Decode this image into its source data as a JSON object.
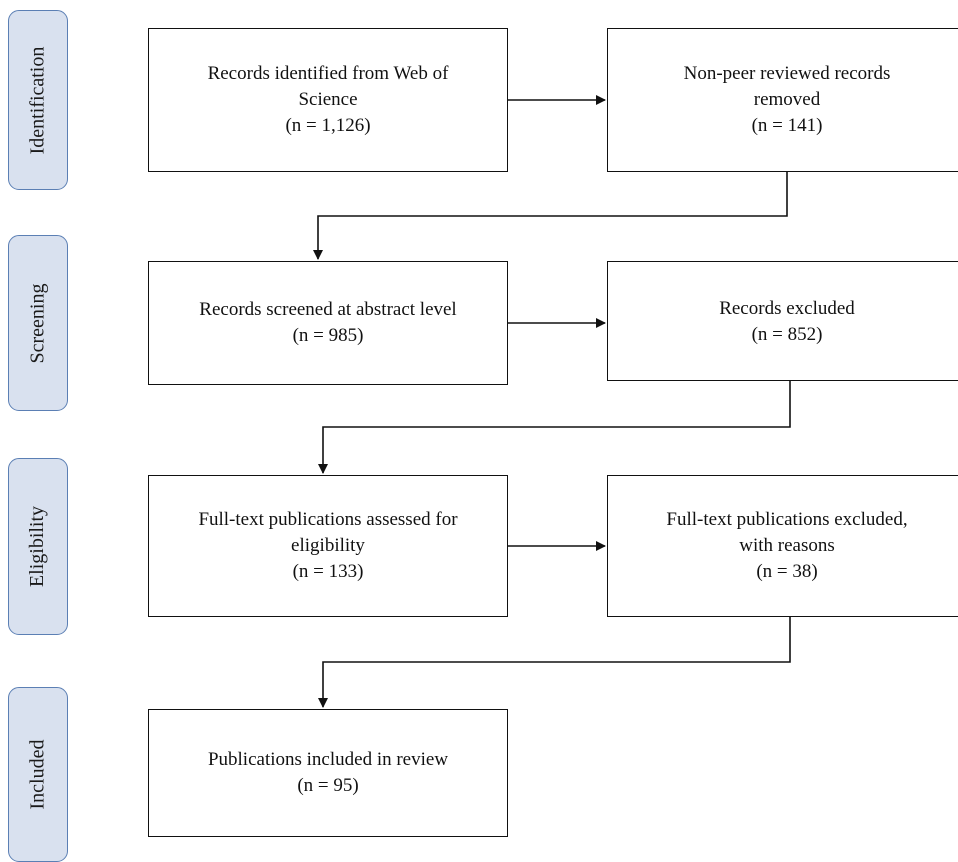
{
  "stages": [
    {
      "label": "Identification"
    },
    {
      "label": "Screening"
    },
    {
      "label": "Eligibility"
    },
    {
      "label": "Included"
    }
  ],
  "boxes": {
    "identified": {
      "lines": [
        "Records identified from Web of",
        "Science"
      ],
      "count": "(n = 1,126)"
    },
    "non_peer_removed": {
      "lines": [
        "Non-peer reviewed records",
        "removed"
      ],
      "count": "(n = 141)"
    },
    "screened": {
      "lines": [
        "Records screened at abstract level"
      ],
      "count": "(n = 985)"
    },
    "excluded": {
      "lines": [
        "Records excluded"
      ],
      "count": "(n = 852)"
    },
    "fulltext_assessed": {
      "lines": [
        "Full-text publications assessed for",
        "eligibility"
      ],
      "count": "(n = 133)"
    },
    "fulltext_excluded": {
      "lines": [
        "Full-text publications excluded,",
        "with reasons"
      ],
      "count": "(n = 38)"
    },
    "included": {
      "lines": [
        "Publications included  in review"
      ],
      "count": "(n = 95)"
    }
  }
}
